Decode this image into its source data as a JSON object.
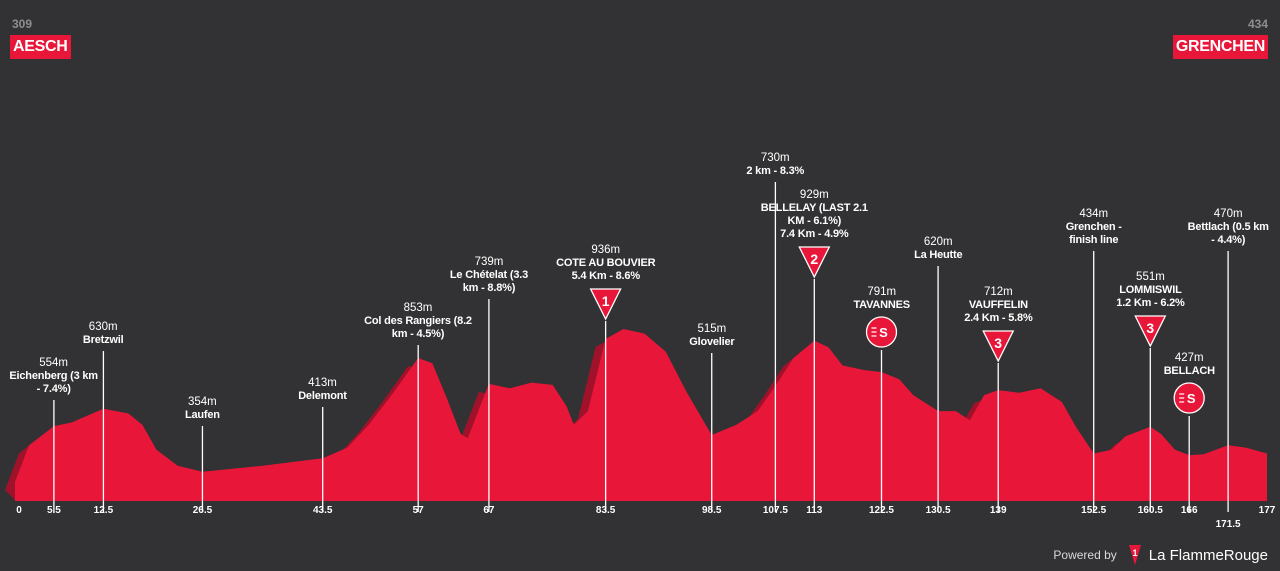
{
  "start": {
    "altitude": "309",
    "name": "AESCH"
  },
  "finish": {
    "altitude": "434",
    "name": "GRENCHEN"
  },
  "footer": {
    "powered_by": "Powered by",
    "brand": "La FlammeRouge"
  },
  "colors": {
    "background": "#323133",
    "profile": "#e8173a",
    "profile_shadow": "#a0122a",
    "markers": "#ffffff"
  },
  "chart_data": {
    "type": "area",
    "title": "",
    "xlabel": "km",
    "ylabel": "m",
    "x_ticks": [
      "0",
      "5.5",
      "12.5",
      "26.5",
      "43.5",
      "57",
      "67",
      "83.5",
      "98.5",
      "107.5",
      "113",
      "122.5",
      "130.5",
      "139",
      "152.5",
      "160.5",
      "166",
      "171.5",
      "177"
    ],
    "profile": [
      [
        0,
        309
      ],
      [
        2,
        470
      ],
      [
        5.5,
        554
      ],
      [
        8,
        570
      ],
      [
        12.5,
        630
      ],
      [
        16,
        610
      ],
      [
        18,
        560
      ],
      [
        20,
        450
      ],
      [
        23,
        380
      ],
      [
        26.5,
        354
      ],
      [
        35,
        380
      ],
      [
        43.5,
        413
      ],
      [
        47,
        460
      ],
      [
        50,
        560
      ],
      [
        53,
        680
      ],
      [
        57,
        853
      ],
      [
        59,
        830
      ],
      [
        61,
        680
      ],
      [
        63,
        520
      ],
      [
        64,
        500
      ],
      [
        65.5,
        620
      ],
      [
        67,
        739
      ],
      [
        70,
        720
      ],
      [
        73,
        745
      ],
      [
        76,
        735
      ],
      [
        78,
        640
      ],
      [
        79,
        560
      ],
      [
        81,
        620
      ],
      [
        83.5,
        936
      ],
      [
        86,
        980
      ],
      [
        89,
        960
      ],
      [
        92,
        880
      ],
      [
        95,
        700
      ],
      [
        98.5,
        515
      ],
      [
        102,
        560
      ],
      [
        105,
        620
      ],
      [
        107.5,
        730
      ],
      [
        110,
        850
      ],
      [
        113,
        929
      ],
      [
        115,
        900
      ],
      [
        117,
        820
      ],
      [
        120,
        800
      ],
      [
        122.5,
        791
      ],
      [
        125,
        760
      ],
      [
        127,
        690
      ],
      [
        130.5,
        620
      ],
      [
        133,
        620
      ],
      [
        135,
        580
      ],
      [
        137,
        690
      ],
      [
        139,
        712
      ],
      [
        142,
        700
      ],
      [
        145,
        720
      ],
      [
        148,
        660
      ],
      [
        150,
        550
      ],
      [
        152.5,
        434
      ],
      [
        155,
        450
      ],
      [
        157,
        510
      ],
      [
        160.5,
        551
      ],
      [
        162,
        520
      ],
      [
        164,
        450
      ],
      [
        166,
        427
      ],
      [
        168,
        430
      ],
      [
        171.5,
        470
      ],
      [
        174,
        460
      ],
      [
        177,
        434
      ]
    ],
    "waypoints": [
      {
        "km": 5.5,
        "km_label": "5.5",
        "elevation": "554m",
        "name": "Eichenberg (3 km\n- 7.4%)"
      },
      {
        "km": 12.5,
        "km_label": "12.5",
        "elevation": "630m",
        "name": "Bretzwil"
      },
      {
        "km": 26.5,
        "km_label": "26.5",
        "elevation": "354m",
        "name": "Laufen"
      },
      {
        "km": 43.5,
        "km_label": "43.5",
        "elevation": "413m",
        "name": "Delemont"
      },
      {
        "km": 57,
        "km_label": "57",
        "elevation": "853m",
        "name": "Col des Rangiers (8.2\nkm - 4.5%)"
      },
      {
        "km": 67,
        "km_label": "67",
        "elevation": "739m",
        "name": "Le Chételat (3.3\nkm - 8.8%)"
      },
      {
        "km": 83.5,
        "km_label": "83.5",
        "elevation": "936m",
        "name": "COTE AU BOUVIER\n5.4 Km - 8.6%",
        "category": "1"
      },
      {
        "km": 98.5,
        "km_label": "98.5",
        "elevation": "515m",
        "name": "Glovelier"
      },
      {
        "km": 107.5,
        "km_label": "107.5",
        "elevation": "730m",
        "name": "2 km - 8.3%"
      },
      {
        "km": 113,
        "km_label": "113",
        "elevation": "929m",
        "name": "BELLELAY (LAST 2.1\nKM - 6.1%)\n7.4 Km - 4.9%",
        "category": "2"
      },
      {
        "km": 122.5,
        "km_label": "122.5",
        "elevation": "791m",
        "name": "TAVANNES",
        "sprint": true
      },
      {
        "km": 130.5,
        "km_label": "130.5",
        "elevation": "620m",
        "name": "La Heutte"
      },
      {
        "km": 139,
        "km_label": "139",
        "elevation": "712m",
        "name": "VAUFFELIN\n2.4 Km - 5.8%",
        "category": "3"
      },
      {
        "km": 152.5,
        "km_label": "152.5",
        "elevation": "434m",
        "name": "Grenchen -\nfinish line"
      },
      {
        "km": 160.5,
        "km_label": "160.5",
        "elevation": "551m",
        "name": "LOMMISWIL\n1.2 Km - 6.2%",
        "category": "3"
      },
      {
        "km": 166,
        "km_label": "166",
        "elevation": "427m",
        "name": "BELLACH",
        "sprint": true
      },
      {
        "km": 171.5,
        "km_label": "171.5",
        "elevation": "470m",
        "name": "Bettlach (0.5 km\n- 4.4%)"
      }
    ]
  }
}
